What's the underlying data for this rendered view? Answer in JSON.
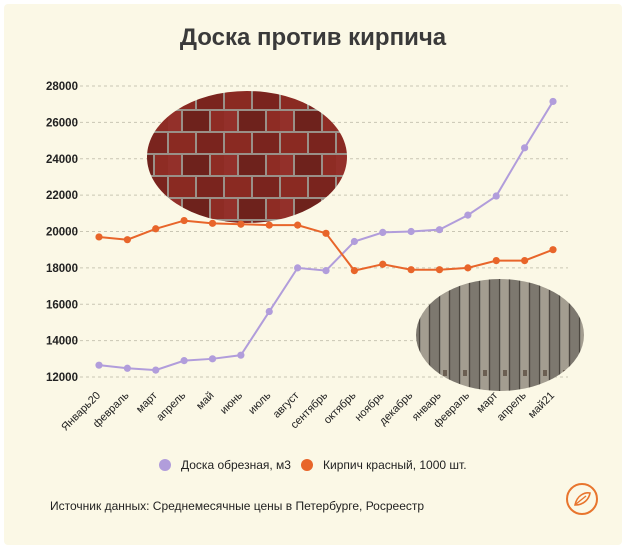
{
  "colors": {
    "board": "#b19ddb",
    "brick": "#e8652a",
    "grid": "#c9c6b4",
    "logo": "#e8752e"
  },
  "chart_data": {
    "type": "line",
    "title": "Доска против кирпича",
    "categories": [
      "Январь20",
      "февраль",
      "март",
      "апрель",
      "май",
      "июнь",
      "июль",
      "август",
      "сентябрь",
      "октябрь",
      "ноябрь",
      "декабрь",
      "январь",
      "февраль",
      "март",
      "апрель",
      "май21"
    ],
    "yticks": [
      "12000",
      "14000",
      "16000",
      "18000",
      "20000",
      "22000",
      "24000",
      "26000",
      "28000"
    ],
    "ylim": [
      11500,
      28500
    ],
    "grid": "horizontal dashed",
    "legend_position": "bottom",
    "series": [
      {
        "name": "Доска обрезная, м3",
        "color": "#b19ddb",
        "values": [
          12650,
          12480,
          12380,
          12900,
          13000,
          13200,
          15600,
          18000,
          17850,
          19450,
          19950,
          20000,
          20100,
          20900,
          21950,
          24600,
          27150
        ]
      },
      {
        "name": "Кирпич красный, 1000 шт.",
        "color": "#e8652a",
        "values": [
          19700,
          19550,
          20150,
          20600,
          20450,
          20400,
          20350,
          20350,
          19900,
          17850,
          18200,
          17900,
          17900,
          18000,
          18400,
          18400,
          19000
        ]
      }
    ]
  },
  "footer": {
    "source": "Источник данных: Среднемесячные цены в Петербурге,  Росреестр",
    "logo_icon": "leaf-logo-icon"
  }
}
